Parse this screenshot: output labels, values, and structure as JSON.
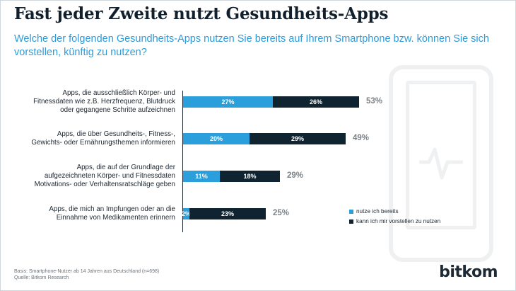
{
  "title": "Fast jeder Zweite nutzt Gesundheits-Apps",
  "subtitle": "Welche der folgenden Gesundheits-Apps nutzen Sie bereits auf Ihrem Smartphone bzw. können Sie sich vorstellen, künftig zu nutzen?",
  "colors": {
    "series1": "#2b9fdb",
    "series2": "#0f2330",
    "title": "#12202d",
    "subtitle": "#2e9bd8",
    "total": "#7b8287"
  },
  "icons": [
    "smartphone-icon",
    "pulse-icon"
  ],
  "chart_data": {
    "type": "bar",
    "orientation": "horizontal-stacked",
    "categories": [
      "Apps, die ausschließlich Körper- und Fitnessdaten wie z.B. Herzfrequenz, Blutdruck oder gegangene Schritte aufzeichnen",
      "Apps, die über Gesundheits-, Fitness-, Gewichts- oder Ernährungsthemen informieren",
      "Apps, die auf der Grundlage der aufgezeichneten Körper- und Fitnessdaten Motivations- oder Verhaltensratschläge geben",
      "Apps, die mich an Impfungen oder an die Einnahme von Medikamenten erinnern"
    ],
    "series": [
      {
        "name": "nutze ich bereits",
        "values": [
          27,
          20,
          11,
          2
        ],
        "labels": [
          "27%",
          "20%",
          "11%",
          "2%"
        ]
      },
      {
        "name": "kann ich mir vorstellen zu nutzen",
        "values": [
          26,
          29,
          18,
          23
        ],
        "labels": [
          "26%",
          "29%",
          "18%",
          "23%"
        ]
      }
    ],
    "totals": [
      "53%",
      "49%",
      "29%",
      "25%"
    ],
    "unit": "%",
    "legend_position": "bottom-right"
  },
  "footer": {
    "basis": "Basis: Smartphone-Nutzer ab 14 Jahren aus Deutschland (n=698)",
    "source": "Quelle: Bitkom Research"
  },
  "logo": "bitkom"
}
